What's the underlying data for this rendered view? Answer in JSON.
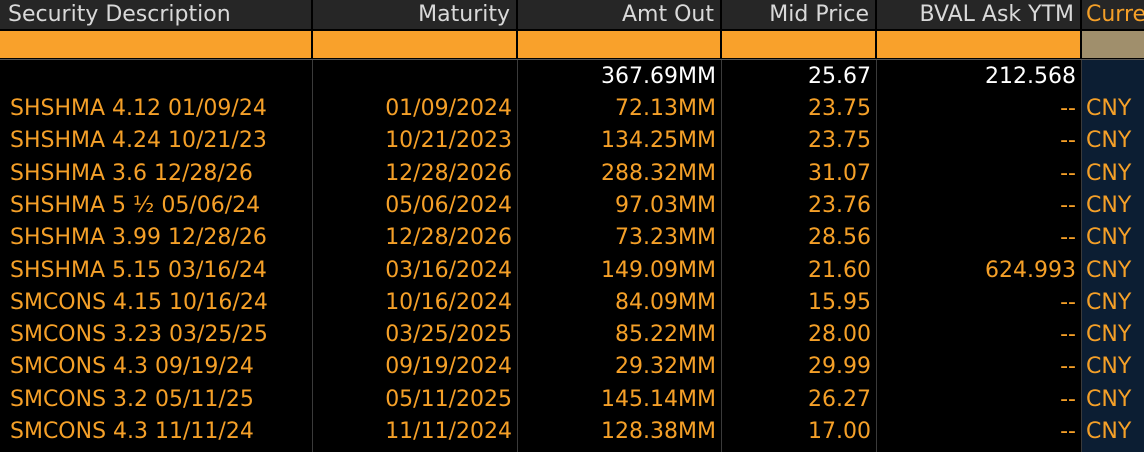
{
  "columns": {
    "security_description": "Security Description",
    "maturity": "Maturity",
    "amt_out": "Amt Out",
    "mid_price": "Mid Price",
    "bval_ask_ytm": "BVAL Ask YTM",
    "currency": "Curre"
  },
  "totals": {
    "amt_out": "367.69MM",
    "mid_price": "25.67",
    "bval_ask_ytm": "212.568"
  },
  "rows": [
    {
      "security": "SHSHMA 4.12 01/09/24",
      "maturity": "01/09/2024",
      "amt_out": "72.13MM",
      "mid_price": "23.75",
      "ytm": "--",
      "currency": "CNY"
    },
    {
      "security": "SHSHMA 4.24 10/21/23",
      "maturity": "10/21/2023",
      "amt_out": "134.25MM",
      "mid_price": "23.75",
      "ytm": "--",
      "currency": "CNY"
    },
    {
      "security": "SHSHMA 3.6 12/28/26",
      "maturity": "12/28/2026",
      "amt_out": "288.32MM",
      "mid_price": "31.07",
      "ytm": "--",
      "currency": "CNY"
    },
    {
      "security": "SHSHMA 5 ½ 05/06/24",
      "maturity": "05/06/2024",
      "amt_out": "97.03MM",
      "mid_price": "23.76",
      "ytm": "--",
      "currency": "CNY"
    },
    {
      "security": "SHSHMA 3.99 12/28/26",
      "maturity": "12/28/2026",
      "amt_out": "73.23MM",
      "mid_price": "28.56",
      "ytm": "--",
      "currency": "CNY"
    },
    {
      "security": "SHSHMA 5.15 03/16/24",
      "maturity": "03/16/2024",
      "amt_out": "149.09MM",
      "mid_price": "21.60",
      "ytm": "624.993",
      "currency": "CNY"
    },
    {
      "security": "SMCONS 4.15 10/16/24",
      "maturity": "10/16/2024",
      "amt_out": "84.09MM",
      "mid_price": "15.95",
      "ytm": "--",
      "currency": "CNY"
    },
    {
      "security": "SMCONS 3.23 03/25/25",
      "maturity": "03/25/2025",
      "amt_out": "85.22MM",
      "mid_price": "28.00",
      "ytm": "--",
      "currency": "CNY"
    },
    {
      "security": "SMCONS 4.3 09/19/24",
      "maturity": "09/19/2024",
      "amt_out": "29.32MM",
      "mid_price": "29.99",
      "ytm": "--",
      "currency": "CNY"
    },
    {
      "security": "SMCONS 3.2 05/11/25",
      "maturity": "05/11/2025",
      "amt_out": "145.14MM",
      "mid_price": "26.27",
      "ytm": "--",
      "currency": "CNY"
    },
    {
      "security": "SMCONS 4.3 11/11/24",
      "maturity": "11/11/2024",
      "amt_out": "128.38MM",
      "mid_price": "17.00",
      "ytm": "--",
      "currency": "CNY"
    }
  ],
  "colors": {
    "header_bg": "#262626",
    "filter_bar": "#f9a12b",
    "row_text": "#f5a028",
    "total_text": "#ffffff",
    "currency_bg": "#0c1e33"
  }
}
